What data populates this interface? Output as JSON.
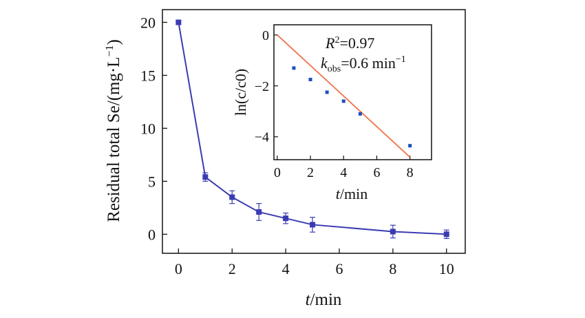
{
  "chart_data": [
    {
      "type": "line",
      "x": [
        0,
        1,
        2,
        3,
        4,
        5,
        8,
        10
      ],
      "y": [
        20.0,
        5.4,
        3.5,
        2.1,
        1.5,
        0.9,
        0.25,
        0.0
      ],
      "error": [
        0.2,
        0.4,
        0.6,
        0.8,
        0.5,
        0.7,
        0.6,
        0.4
      ],
      "xlim": [
        -0.6,
        10.7
      ],
      "ylim": [
        -1.8,
        21.2
      ],
      "xticks": [
        "0",
        "2",
        "4",
        "6",
        "8",
        "10"
      ],
      "yticks": [
        "0",
        "5",
        "10",
        "15",
        "20"
      ],
      "xlabel_italic": "t",
      "xlabel_rest": "/min",
      "ylabel": "Residual total Se/(mg·L",
      "ylabel_sup": "−1",
      "ylabel_close": ")",
      "color": "#3b3bb3"
    },
    {
      "type": "scatter",
      "x": [
        1,
        2,
        3,
        4,
        5,
        8
      ],
      "y": [
        -1.3,
        -1.75,
        -2.25,
        -2.6,
        -3.1,
        -4.35
      ],
      "fit": {
        "slope": -0.6,
        "intercept": 0.0
      },
      "xlim": [
        -0.2,
        9.3
      ],
      "ylim": [
        -4.9,
        0.4
      ],
      "xticks": [
        "0",
        "2",
        "4",
        "6",
        "8"
      ],
      "yticks": [
        "0",
        "−2",
        "−4"
      ],
      "xlabel_italic": "t",
      "xlabel_rest": "/min",
      "ylabel": "ln(c/c0)",
      "annotation_r2_label": "R",
      "annotation_r2_sup": "2",
      "annotation_r2_value": "=0.97",
      "annotation_k_label": "k",
      "annotation_k_sub": "obs",
      "annotation_k_value": "=0.6 min",
      "annotation_k_sup": "−1",
      "point_color": "#1f4fbf",
      "fit_color": "#f0734a"
    }
  ]
}
